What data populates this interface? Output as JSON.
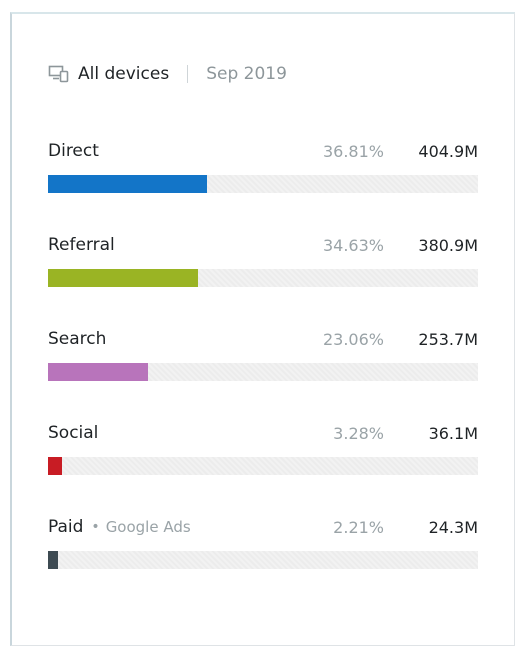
{
  "header": {
    "device_label": "All devices",
    "period": "Sep 2019",
    "icon": "devices-icon"
  },
  "sources": [
    {
      "name": "Direct",
      "sub": "",
      "percent_label": "36.81%",
      "value": "404.9M",
      "share": 0.3681,
      "color": "#1375c8"
    },
    {
      "name": "Referral",
      "sub": "",
      "percent_label": "34.63%",
      "value": "380.9M",
      "share": 0.3463,
      "color": "#9ab424"
    },
    {
      "name": "Search",
      "sub": "",
      "percent_label": "23.06%",
      "value": "253.7M",
      "share": 0.2306,
      "color": "#b874bb"
    },
    {
      "name": "Social",
      "sub": "",
      "percent_label": "3.28%",
      "value": "36.1M",
      "share": 0.0328,
      "color": "#c81c24"
    },
    {
      "name": "Paid",
      "sub": "Google Ads",
      "percent_label": "2.21%",
      "value": "24.3M",
      "share": 0.0221,
      "color": "#3d4a52"
    }
  ]
}
